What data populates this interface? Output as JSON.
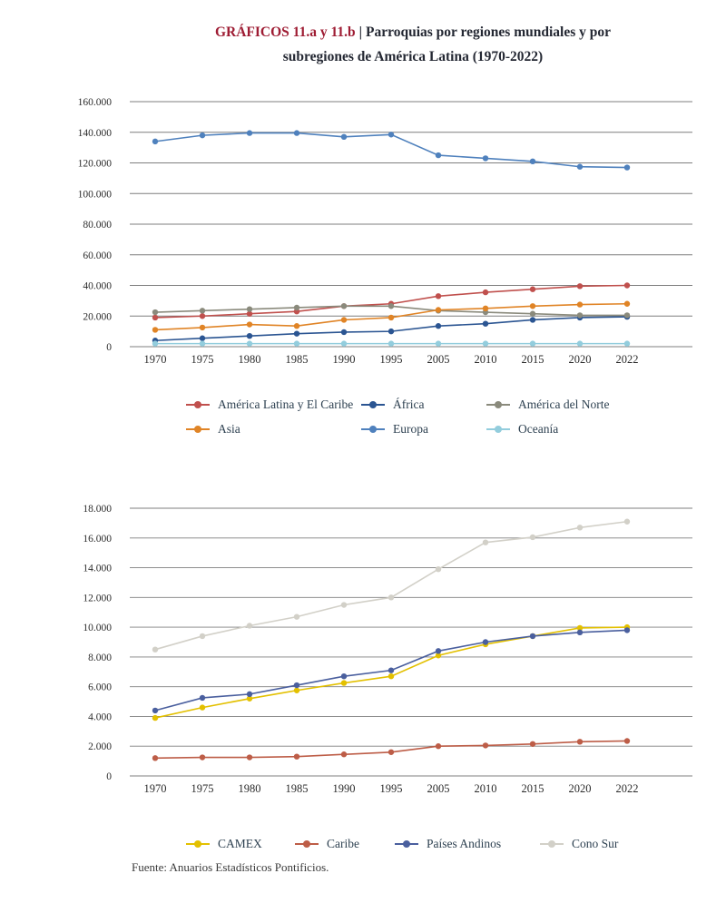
{
  "header": {
    "label": "GRÁFICOS 11.a y 11.b",
    "separator": "|",
    "title": "Parroquias por regiones mundiales y por subregiones de América Latina (1970-2022)"
  },
  "footer": {
    "source": "Fuente: Anuarios Estadísticos Pontificios."
  },
  "chart_data": [
    {
      "type": "line",
      "categories": [
        "1970",
        "1975",
        "1980",
        "1985",
        "1990",
        "1995",
        "2005",
        "2010",
        "2015",
        "2020",
        "2022"
      ],
      "ylim": [
        0,
        160000
      ],
      "ytick_step": 20000,
      "grid": true,
      "legend_position": "bottom",
      "series": [
        {
          "name": "América Latina y El Caribe",
          "color": "#c0504d",
          "values": [
            19000,
            20000,
            21500,
            23000,
            26500,
            28000,
            33000,
            35500,
            37500,
            39500,
            40000
          ]
        },
        {
          "name": "África",
          "color": "#2b5592",
          "values": [
            4000,
            5500,
            7000,
            8500,
            9500,
            10000,
            13500,
            15000,
            17500,
            19000,
            19500
          ]
        },
        {
          "name": "América del Norte",
          "color": "#8a8a7c",
          "values": [
            22500,
            23500,
            24500,
            25500,
            26500,
            26500,
            23500,
            22500,
            21500,
            20500,
            20500
          ]
        },
        {
          "name": "Asia",
          "color": "#e08426",
          "values": [
            11000,
            12500,
            14500,
            13500,
            17500,
            19000,
            24000,
            25000,
            26500,
            27500,
            28000
          ]
        },
        {
          "name": "Europa",
          "color": "#4f81bd",
          "values": [
            134000,
            138000,
            139500,
            139500,
            137000,
            138500,
            125000,
            123000,
            121000,
            117500,
            117000
          ]
        },
        {
          "name": "Oceanía",
          "color": "#93cddd",
          "values": [
            2000,
            2000,
            2000,
            2000,
            2000,
            2000,
            2000,
            2000,
            2000,
            2000,
            2000
          ]
        }
      ]
    },
    {
      "type": "line",
      "categories": [
        "1970",
        "1975",
        "1980",
        "1985",
        "1990",
        "1995",
        "2005",
        "2010",
        "2015",
        "2020",
        "2022"
      ],
      "ylim": [
        0,
        18000
      ],
      "ytick_step": 2000,
      "grid": true,
      "legend_position": "bottom",
      "series": [
        {
          "name": "CAMEX",
          "color": "#e3c000",
          "values": [
            3900,
            4600,
            5200,
            5750,
            6250,
            6700,
            8100,
            8850,
            9400,
            9950,
            10000
          ]
        },
        {
          "name": "Caribe",
          "color": "#bd5d47",
          "values": [
            1200,
            1250,
            1250,
            1300,
            1450,
            1600,
            2000,
            2050,
            2150,
            2300,
            2350
          ]
        },
        {
          "name": "Países Andinos",
          "color": "#4a5f9e",
          "values": [
            4400,
            5250,
            5500,
            6100,
            6700,
            7100,
            8400,
            9000,
            9400,
            9650,
            9800
          ]
        },
        {
          "name": "Cono Sur",
          "color": "#d2d0c8",
          "values": [
            8500,
            9400,
            10100,
            10700,
            11500,
            12000,
            13900,
            15700,
            16050,
            16700,
            17100
          ]
        }
      ]
    }
  ]
}
